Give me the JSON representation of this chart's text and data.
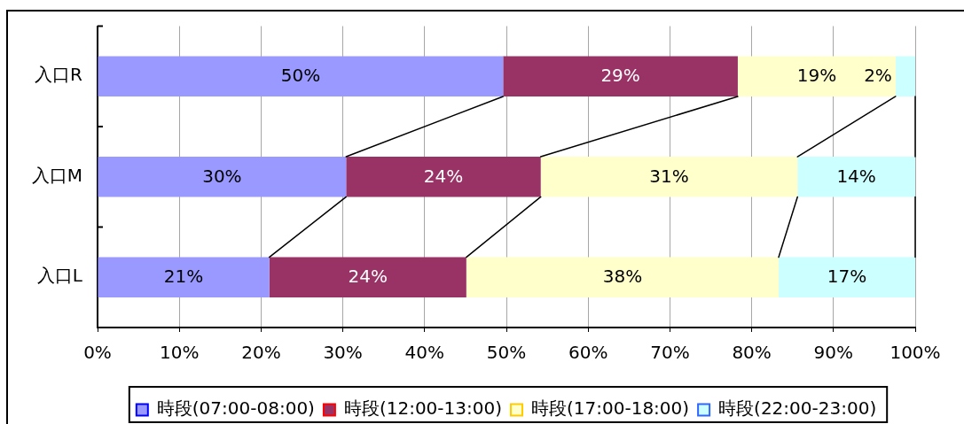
{
  "chart_data": {
    "type": "bar",
    "orientation": "horizontal",
    "stacked": true,
    "categories": [
      "入口R",
      "入口M",
      "入口L"
    ],
    "series": [
      {
        "name": "時段(07:00-08:00)",
        "color": "#9999ff",
        "values": [
          49.6,
          30.4,
          21.0
        ],
        "value_labels": [
          "50%",
          "30%",
          "21%"
        ]
      },
      {
        "name": "時段(12:00-13:00)",
        "color": "#993366",
        "values": [
          28.7,
          23.8,
          24.1
        ],
        "value_labels": [
          "29%",
          "24%",
          "24%"
        ]
      },
      {
        "name": "時段(17:00-18:00)",
        "color": "#ffffcc",
        "values": [
          19.3,
          31.4,
          38.2
        ],
        "value_labels": [
          "19%",
          "31%",
          "38%"
        ]
      },
      {
        "name": "時段(22:00-23:00)",
        "color": "#ccffff",
        "values": [
          2.4,
          14.4,
          16.7
        ],
        "value_labels": [
          "2%",
          "14%",
          "17%"
        ]
      }
    ],
    "xlim": [
      0,
      100
    ],
    "xticks": [
      {
        "value": 0,
        "label": "0%"
      },
      {
        "value": 10,
        "label": "10%"
      },
      {
        "value": 20,
        "label": "20%"
      },
      {
        "value": 30,
        "label": "30%"
      },
      {
        "value": 40,
        "label": "40%"
      },
      {
        "value": 50,
        "label": "50%"
      },
      {
        "value": 60,
        "label": "60%"
      },
      {
        "value": 70,
        "label": "70%"
      },
      {
        "value": 80,
        "label": "80%"
      },
      {
        "value": 90,
        "label": "90%"
      },
      {
        "value": 100,
        "label": "100%"
      }
    ],
    "grid": "x",
    "legend": "bottom"
  }
}
